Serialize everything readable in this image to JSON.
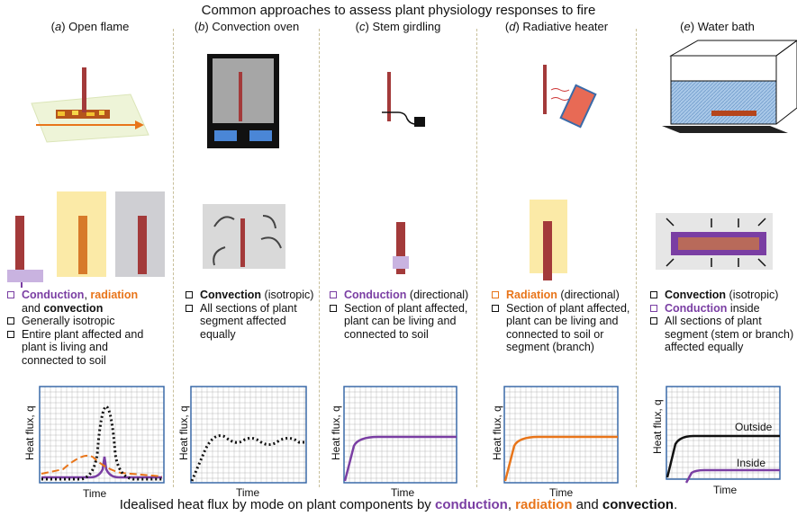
{
  "title": "Common approaches to assess plant physiology responses to fire",
  "footer": {
    "prefix": "Idealised heat flux by mode on plant components by ",
    "conduction": "conduction",
    "sep1": ", ",
    "radiation": "radiation",
    "sep2": " and ",
    "convection": "convection",
    "suffix": "."
  },
  "colors": {
    "conduction": "#7a3ea3",
    "radiation": "#e8751a",
    "convection": "#111111",
    "grid": "#b9b9b9",
    "frame": "#3a6aa8"
  },
  "columns": [
    {
      "letter": "a",
      "name": "Open flame",
      "lines": [
        {
          "parts": [
            {
              "t": "Conduction",
              "k": "c"
            },
            {
              "t": ", ",
              "k": ""
            },
            {
              "t": "radiation",
              "k": "r"
            }
          ],
          "box": "purple"
        },
        {
          "parts": [
            {
              "t": "and ",
              "k": ""
            },
            {
              "t": "convection",
              "k": "v"
            }
          ],
          "box": "none"
        },
        {
          "parts": [
            {
              "t": "Generally isotropic",
              "k": ""
            }
          ],
          "box": "black"
        },
        {
          "parts": [
            {
              "t": "Entire plant affected and",
              "k": ""
            }
          ],
          "box": "black"
        },
        {
          "parts": [
            {
              "t": "plant is living and",
              "k": ""
            }
          ],
          "box": "none"
        },
        {
          "parts": [
            {
              "t": "connected to soil",
              "k": ""
            }
          ],
          "box": "none"
        }
      ]
    },
    {
      "letter": "b",
      "name": "Convection oven",
      "lines": [
        {
          "parts": [
            {
              "t": "Convection",
              "k": "v"
            },
            {
              "t": " (isotropic)",
              "k": ""
            }
          ],
          "box": "black"
        },
        {
          "parts": [
            {
              "t": "All sections of plant",
              "k": ""
            }
          ],
          "box": "black"
        },
        {
          "parts": [
            {
              "t": "segment affected",
              "k": ""
            }
          ],
          "box": "none"
        },
        {
          "parts": [
            {
              "t": "equally",
              "k": ""
            }
          ],
          "box": "none"
        }
      ]
    },
    {
      "letter": "c",
      "name": "Stem girdling",
      "lines": [
        {
          "parts": [
            {
              "t": "Conduction",
              "k": "c"
            },
            {
              "t": " (directional)",
              "k": ""
            }
          ],
          "box": "purple"
        },
        {
          "parts": [
            {
              "t": "Section of plant affected,",
              "k": ""
            }
          ],
          "box": "black"
        },
        {
          "parts": [
            {
              "t": "plant can be living and",
              "k": ""
            }
          ],
          "box": "none"
        },
        {
          "parts": [
            {
              "t": "connected to soil",
              "k": ""
            }
          ],
          "box": "none"
        }
      ]
    },
    {
      "letter": "d",
      "name": "Radiative heater",
      "lines": [
        {
          "parts": [
            {
              "t": "Radiation",
              "k": "r"
            },
            {
              "t": " (directional)",
              "k": ""
            }
          ],
          "box": "orange"
        },
        {
          "parts": [
            {
              "t": "Section of plant affected,",
              "k": ""
            }
          ],
          "box": "black"
        },
        {
          "parts": [
            {
              "t": "plant can be living and",
              "k": ""
            }
          ],
          "box": "none"
        },
        {
          "parts": [
            {
              "t": "connected to soil or",
              "k": ""
            }
          ],
          "box": "none"
        },
        {
          "parts": [
            {
              "t": "segment (branch)",
              "k": ""
            }
          ],
          "box": "none"
        }
      ]
    },
    {
      "letter": "e",
      "name": "Water bath",
      "lines": [
        {
          "parts": [
            {
              "t": "Convection",
              "k": "v"
            },
            {
              "t": " (isotropic)",
              "k": ""
            }
          ],
          "box": "black"
        },
        {
          "parts": [
            {
              "t": "Conduction",
              "k": "c"
            },
            {
              "t": " inside",
              "k": ""
            }
          ],
          "box": "purple"
        },
        {
          "parts": [
            {
              "t": "All sections of plant",
              "k": ""
            }
          ],
          "box": "black"
        },
        {
          "parts": [
            {
              "t": "segment (stem or branch)",
              "k": ""
            }
          ],
          "box": "none"
        },
        {
          "parts": [
            {
              "t": "affected equally",
              "k": ""
            }
          ],
          "box": "none"
        }
      ]
    }
  ],
  "plots": {
    "ylabel": "Heat flux, q",
    "xlabel": "Time",
    "curve_labels": {
      "outside": "Outside",
      "inside": "Inside"
    }
  }
}
